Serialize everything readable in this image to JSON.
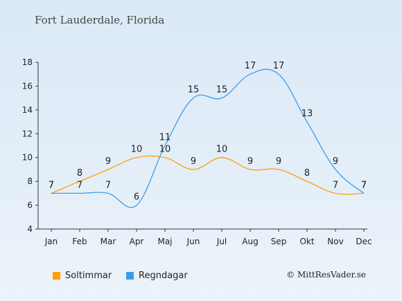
{
  "colors": {
    "sun": "#ff9e00",
    "rain": "#3c9be8",
    "axis": "#333333"
  },
  "chart_data": {
    "type": "line",
    "title": "Fort Lauderdale, Florida",
    "categories": [
      "Jan",
      "Feb",
      "Mar",
      "Apr",
      "Maj",
      "Jun",
      "Jul",
      "Aug",
      "Sep",
      "Okt",
      "Nov",
      "Dec"
    ],
    "ylim": [
      4,
      18
    ],
    "yticks": [
      4,
      6,
      8,
      10,
      12,
      14,
      16,
      18
    ],
    "grid": false,
    "legend_position": "bottom-left",
    "series": [
      {
        "name": "Soltimmar",
        "color": "#ff9e00",
        "values": [
          7,
          8,
          9,
          10,
          10,
          9,
          10,
          9,
          9,
          8,
          7,
          7
        ]
      },
      {
        "name": "Regndagar",
        "color": "#3c9be8",
        "values": [
          7,
          7,
          7,
          6,
          11,
          15,
          15,
          17,
          17,
          13,
          9,
          7
        ]
      }
    ]
  },
  "copyright": "© MittResVader.se"
}
